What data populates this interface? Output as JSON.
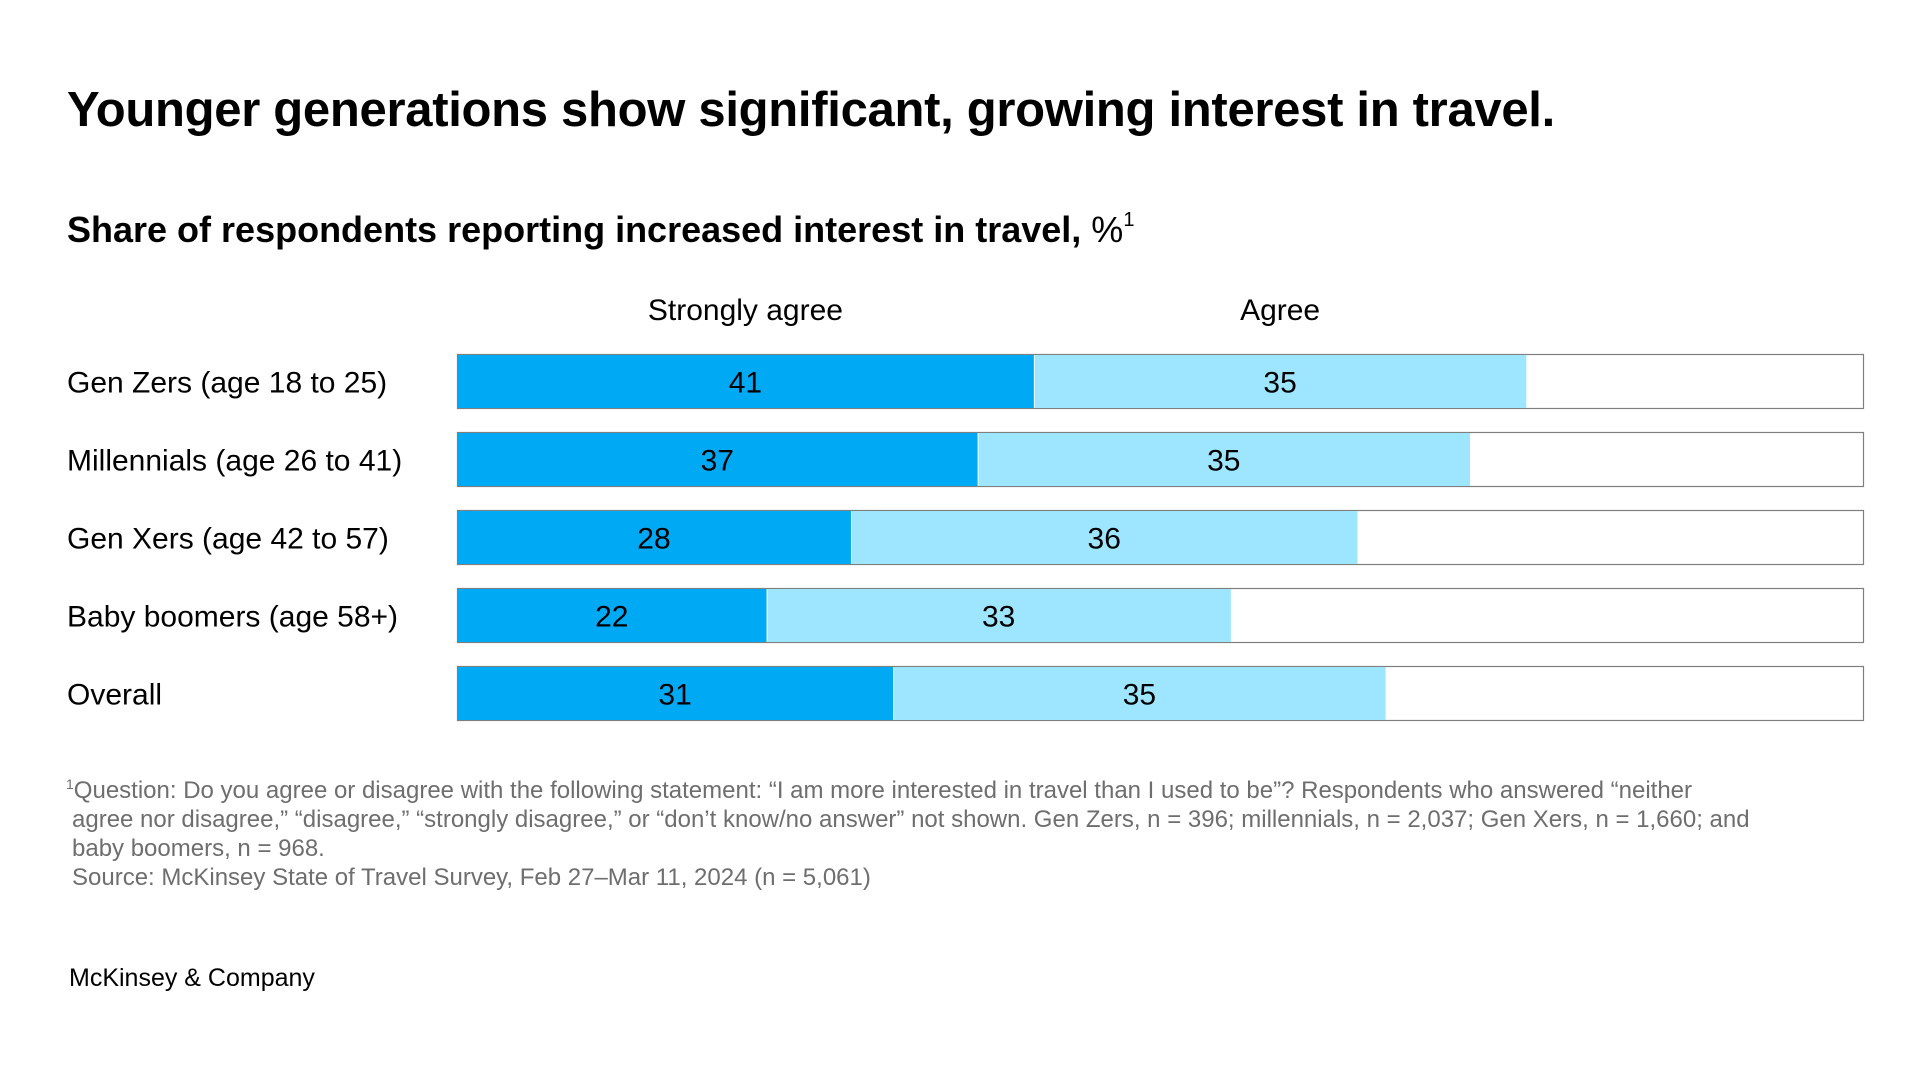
{
  "title": "Younger generations show significant, growing interest in travel.",
  "subtitle": {
    "bold": "Share of respondents reporting increased interest in travel,",
    "unit": "%",
    "footnote_mark": "1"
  },
  "colors": {
    "strongly_agree": "#00a9f4",
    "agree": "#9ee6ff",
    "remainder_bg": "#ffffff",
    "bar_border": "#7f7f7f"
  },
  "chart_data": {
    "type": "bar",
    "orientation": "horizontal",
    "stacked": true,
    "title": "Share of respondents reporting increased interest in travel, %",
    "xlabel": "",
    "ylabel": "",
    "xlim": [
      0,
      100
    ],
    "grid": false,
    "legend_position": "top",
    "categories": [
      "Gen Zers (age 18 to 25)",
      "Millennials (age 26 to 41)",
      "Gen Xers (age 42 to 57)",
      "Baby boomers (age 58+)",
      "Overall"
    ],
    "series": [
      {
        "name": "Strongly agree",
        "values": [
          41,
          37,
          28,
          22,
          31
        ]
      },
      {
        "name": "Agree",
        "values": [
          35,
          35,
          36,
          33,
          35
        ]
      }
    ]
  },
  "footnote": {
    "mark": "1",
    "lines": [
      "Question: Do you agree or disagree with the following statement: “I am more interested in travel than I used to be”? Respondents who answered “neither",
      "agree nor disagree,” “disagree,” “strongly disagree,” or “don’t know/no answer” not shown. Gen Zers, n = 396; millennials, n = 2,037; Gen Xers, n = 1,660; and",
      "baby boomers, n = 968."
    ],
    "source": "Source: McKinsey State of Travel Survey, Feb 27–Mar 11, 2024 (n = 5,061)"
  },
  "brand": "McKinsey & Company"
}
